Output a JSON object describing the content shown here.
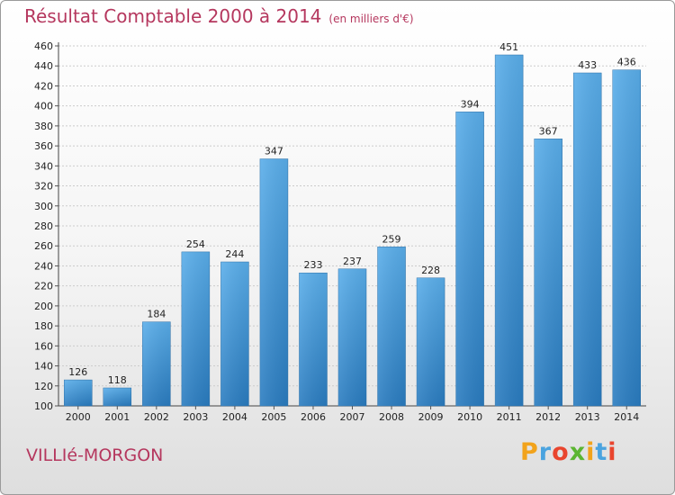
{
  "chart_data": {
    "type": "bar",
    "title": "Résultat Comptable 2000 à 2014",
    "subtitle": "(en milliers d'€)",
    "categories": [
      "2000",
      "2001",
      "2002",
      "2003",
      "2004",
      "2005",
      "2006",
      "2007",
      "2008",
      "2009",
      "2010",
      "2011",
      "2012",
      "2013",
      "2014"
    ],
    "values": [
      126,
      118,
      184,
      254,
      244,
      347,
      233,
      237,
      259,
      228,
      394,
      451,
      367,
      433,
      436
    ],
    "ylim": [
      100,
      460
    ],
    "yticks": [
      100,
      120,
      140,
      160,
      180,
      200,
      220,
      240,
      260,
      280,
      300,
      320,
      340,
      360,
      380,
      400,
      420,
      440,
      460
    ],
    "grid": true,
    "bar_color_top": "#5aaeea",
    "bar_color_bottom": "#2a7cc0"
  },
  "place_label": "VILLIé-MORGON",
  "logo": {
    "letters": [
      "P",
      "r",
      "o",
      "x",
      "i",
      "t",
      "i"
    ],
    "colors": [
      "#f2a31b",
      "#4aa3df",
      "#e9452e",
      "#5bb531",
      "#f2a31b",
      "#4aa3df",
      "#e9452e"
    ]
  }
}
